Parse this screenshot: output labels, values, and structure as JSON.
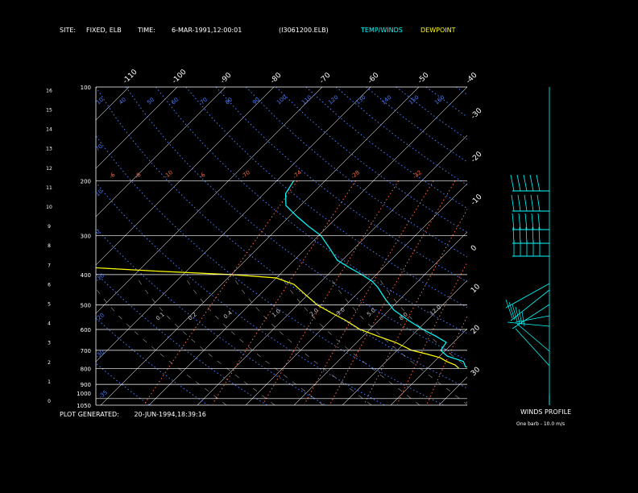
{
  "header": {
    "site_label": "SITE:",
    "site_value": "FIXED, ELB",
    "time_label": "TIME:",
    "time_value": "6-MAR-1991,12:00:01",
    "file_id": "(I3061200.ELB)",
    "legend_temp": "TEMP/WINDS",
    "legend_dew": "DEWPOINT"
  },
  "footer": {
    "plot_generated_label": "PLOT GENERATED:",
    "plot_generated_value": "20-JUN-1994,18:39:16",
    "winds_profile_label": "WINDS PROFILE",
    "barb_note": "One barb - 10.0 m/s"
  },
  "colors": {
    "background": "#000000",
    "temp": "#00ffff",
    "dewpoint": "#ffff00",
    "isobar": "#ffffff",
    "isotherm": "#ffffff",
    "dry_adiabat": "#4a7dff",
    "mixing_ratio": "#ff6a3a",
    "moist_adiabat": "#ffffff"
  },
  "chart_data": {
    "type": "skew-t",
    "pressure_levels": [
      100,
      200,
      300,
      400,
      500,
      600,
      700,
      800,
      900,
      1000,
      1050
    ],
    "pressure_labels": [
      "100",
      "200",
      "300",
      "400",
      "500",
      "600",
      "700",
      "800",
      "900",
      "1000",
      "1050"
    ],
    "height_ticks_km": [
      "0",
      "1",
      "2",
      "3",
      "4",
      "5",
      "6",
      "7",
      "8",
      "9",
      "10",
      "11",
      "12",
      "13",
      "14",
      "15",
      "16"
    ],
    "top_temp_labels": [
      "-110",
      "-100",
      "-90",
      "-80",
      "-70",
      "-60",
      "-50",
      "-40"
    ],
    "right_temp_labels": [
      "-30",
      "-20",
      "-10",
      "0",
      "10",
      "20",
      "30"
    ],
    "dry_adiabat_labels": [
      "10",
      "40",
      "50",
      "60",
      "70",
      "80",
      "90",
      "100",
      "110",
      "120",
      "130",
      "140",
      "150",
      "160"
    ],
    "dry_adiabat_left_labels": [
      "70",
      "10",
      "0",
      "-10",
      "-20",
      "-30",
      "-35"
    ],
    "mixing_ratio_labels": [
      "-6",
      "-8",
      "-10",
      "-6",
      "-70",
      "-74",
      "-28",
      "-32"
    ],
    "moist_adiabat_labels": [
      "0.1",
      "0.2",
      "0.4",
      "1.0",
      "2.0",
      "3.0",
      "5.0",
      "8.0",
      "12.0"
    ],
    "temperature_profile": [
      {
        "p": 805,
        "t": 20.0
      },
      {
        "p": 790,
        "t": 17.5
      },
      {
        "p": 760,
        "t": 16.0
      },
      {
        "p": 730,
        "t": 11.5
      },
      {
        "p": 700,
        "t": 9.0
      },
      {
        "p": 660,
        "t": 8.5
      },
      {
        "p": 630,
        "t": 5.0
      },
      {
        "p": 600,
        "t": 1.0
      },
      {
        "p": 560,
        "t": -4.0
      },
      {
        "p": 520,
        "t": -9.0
      },
      {
        "p": 480,
        "t": -13.0
      },
      {
        "p": 440,
        "t": -17.0
      },
      {
        "p": 420,
        "t": -19.5
      },
      {
        "p": 400,
        "t": -23.0
      },
      {
        "p": 380,
        "t": -27.0
      },
      {
        "p": 360,
        "t": -31.0
      },
      {
        "p": 330,
        "t": -35.0
      },
      {
        "p": 300,
        "t": -39.5
      },
      {
        "p": 280,
        "t": -44.0
      },
      {
        "p": 260,
        "t": -48.5
      },
      {
        "p": 240,
        "t": -53.0
      },
      {
        "p": 220,
        "t": -55.5
      },
      {
        "p": 200,
        "t": -56.5
      }
    ],
    "dewpoint_profile": [
      {
        "p": 800,
        "t": 16.5
      },
      {
        "p": 780,
        "t": 15.0
      },
      {
        "p": 760,
        "t": 12.5
      },
      {
        "p": 740,
        "t": 10.5
      },
      {
        "p": 720,
        "t": 7.0
      },
      {
        "p": 700,
        "t": 3.0
      },
      {
        "p": 660,
        "t": -2.0
      },
      {
        "p": 630,
        "t": -7.0
      },
      {
        "p": 600,
        "t": -12.0
      },
      {
        "p": 560,
        "t": -17.0
      },
      {
        "p": 530,
        "t": -21.5
      },
      {
        "p": 500,
        "t": -26.0
      },
      {
        "p": 460,
        "t": -31.0
      },
      {
        "p": 430,
        "t": -35.0
      },
      {
        "p": 410,
        "t": -40.0
      },
      {
        "p": 400,
        "t": -50.0
      },
      {
        "p": 390,
        "t": -66.0
      },
      {
        "p": 380,
        "t": -80.0
      },
      {
        "p": 370,
        "t": -92.0
      },
      {
        "p": 350,
        "t": -104.0
      },
      {
        "p": 330,
        "t": -112.0
      },
      {
        "p": 300,
        "t": -116.0
      },
      {
        "p": 285,
        "t": -110.0
      },
      {
        "p": 270,
        "t": -102.0
      },
      {
        "p": 262,
        "t": -110.0
      },
      {
        "p": 250,
        "t": -116.0
      },
      {
        "p": 240,
        "t": -118.0
      }
    ]
  }
}
